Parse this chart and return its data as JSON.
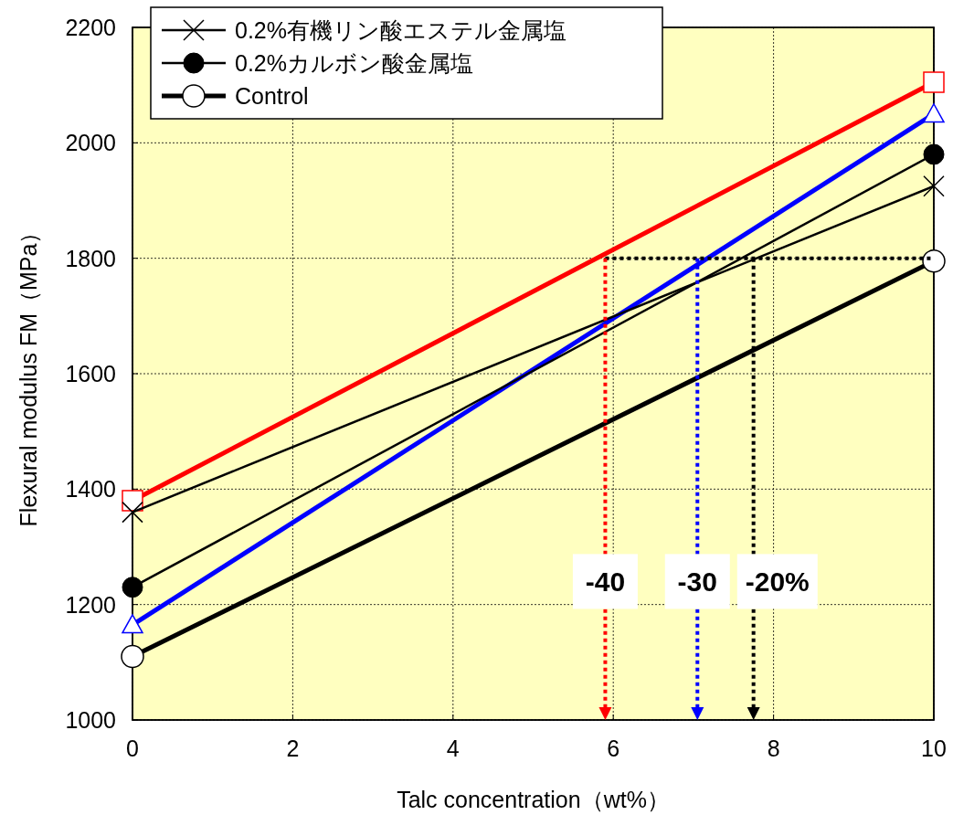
{
  "chart_data": {
    "type": "line",
    "xlabel": "Talc concentration（wt%）",
    "ylabel": "Flexural modulus FM（MPa）",
    "x": [
      0,
      10
    ],
    "series": [
      {
        "color": "#ff0000",
        "values": [
          1380,
          2105
        ],
        "marker": "square"
      },
      {
        "color": "#0000ff",
        "values": [
          1165,
          2050
        ],
        "marker": "triangle"
      },
      {
        "name": "0.2%有機リン酸エステル金属塩",
        "color": "#000000",
        "values": [
          1360,
          1925
        ],
        "marker": "cross"
      },
      {
        "name": "0.2%カルボン酸金属塩",
        "color": "#000000",
        "values": [
          1230,
          1980
        ],
        "marker": "filled_circle"
      },
      {
        "name": "Control",
        "color": "#000000",
        "values": [
          1110,
          1795
        ],
        "marker": "circle"
      }
    ],
    "xlim": [
      0,
      10
    ],
    "ylim": [
      1000,
      2200
    ],
    "xticks": [
      0,
      2,
      4,
      6,
      8,
      10
    ],
    "yticks": [
      1000,
      1200,
      1400,
      1600,
      1800,
      2000,
      2200
    ],
    "grid": true,
    "legend": "top left",
    "line_style": "solid",
    "ref_lines": [
      {
        "axis": "y",
        "value": 1800,
        "color": "#000000",
        "line_style": "dotted"
      },
      {
        "axis": "x",
        "value": 5.9,
        "color": "#ff0000",
        "line_style": "dotted"
      },
      {
        "axis": "x",
        "value": 7.05,
        "color": "#0000ff",
        "line_style": "dotted"
      },
      {
        "axis": "x",
        "value": 7.75,
        "color": "#000000",
        "line_style": "dotted"
      }
    ],
    "annotations": [
      {
        "text": "-40",
        "x": 5.9,
        "y": 1240
      },
      {
        "text": "-30",
        "x": 7.05,
        "y": 1240
      },
      {
        "text": "-20%",
        "x": 7.75,
        "y": 1240
      }
    ]
  }
}
